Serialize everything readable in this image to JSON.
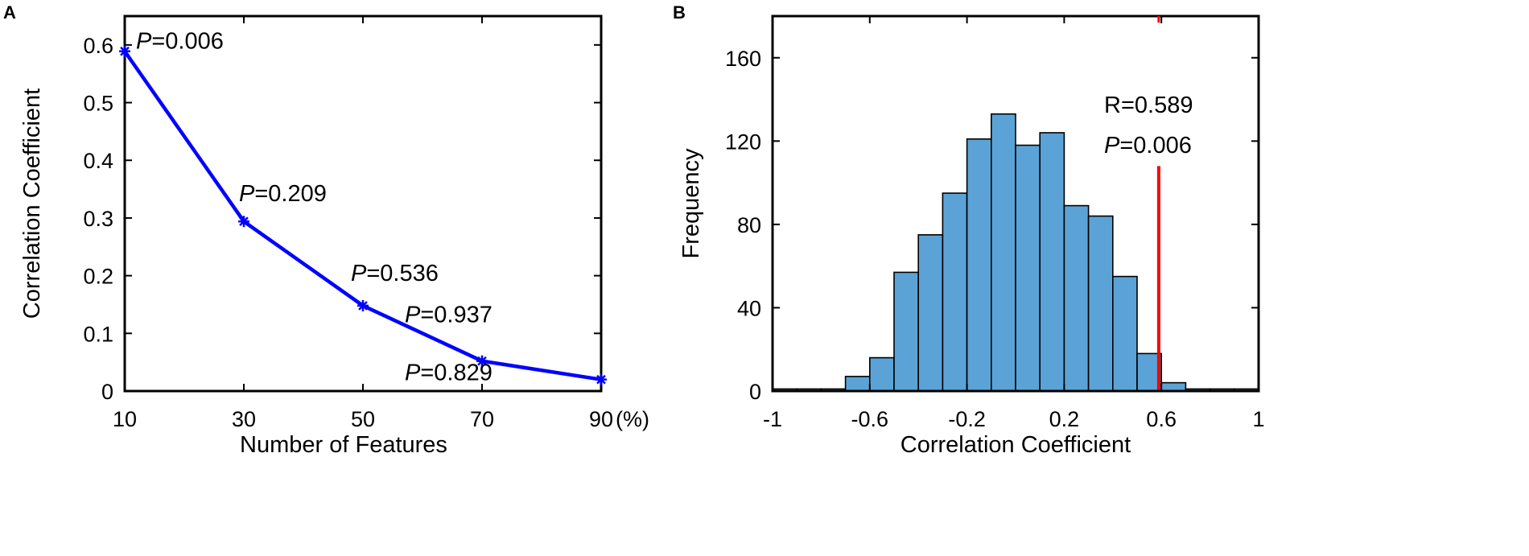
{
  "chart_data": [
    {
      "panel": "A",
      "type": "line",
      "xlabel": "Number of Features",
      "ylabel": "Correlation Coefficient",
      "x_unit": "(%)",
      "x": [
        10,
        30,
        50,
        70,
        90
      ],
      "xticks": [
        "10",
        "30",
        "50",
        "70",
        "90"
      ],
      "xlim": [
        10,
        90
      ],
      "ylim": [
        0,
        0.65
      ],
      "yticks": [
        "0",
        "0.1",
        "0.2",
        "0.3",
        "0.4",
        "0.5",
        "0.6"
      ],
      "series": [
        {
          "values": [
            0.589,
            0.294,
            0.148,
            0.052,
            0.02
          ],
          "color": "#0000ff",
          "marker": "asterisk"
        }
      ],
      "annotations": [
        {
          "prefix": "P",
          "text": "=0.006"
        },
        {
          "prefix": "P",
          "text": "=0.209"
        },
        {
          "prefix": "P",
          "text": "=0.536"
        },
        {
          "prefix": "P",
          "text": "=0.829"
        },
        {
          "prefix": "P",
          "text": "=0.937"
        }
      ],
      "grid": false
    },
    {
      "panel": "B",
      "type": "bar",
      "subtype": "histogram",
      "xlabel": "Correlation Coefficient",
      "ylabel": "Frequency",
      "xlim": [
        -1,
        1
      ],
      "xticks": [
        "-1",
        "-0.6",
        "-0.2",
        "0.2",
        "0.6",
        "1"
      ],
      "ylim": [
        0,
        180
      ],
      "yticks": [
        "0",
        "40",
        "80",
        "120",
        "160"
      ],
      "bin_width": 0.1,
      "bin_starts": [
        -1.0,
        -0.9,
        -0.8,
        -0.7,
        -0.6,
        -0.5,
        -0.4,
        -0.3,
        -0.2,
        -0.1,
        0.0,
        0.1,
        0.2,
        0.3,
        0.4,
        0.5,
        0.6,
        0.7,
        0.8,
        0.9
      ],
      "values": [
        1,
        1,
        1,
        7,
        16,
        57,
        75,
        95,
        121,
        133,
        118,
        124,
        89,
        84,
        55,
        18,
        4,
        1,
        1,
        1
      ],
      "bar_color": "#5ba3d6",
      "observed_line": {
        "x": 0.589,
        "top": 108,
        "color": "#ff0000"
      },
      "annotations": [
        {
          "prefix": "",
          "text": "R=0.589"
        },
        {
          "prefix": "P",
          "text": "=0.006"
        }
      ],
      "grid": false
    }
  ],
  "panels": {
    "a": "A",
    "b": "B"
  }
}
